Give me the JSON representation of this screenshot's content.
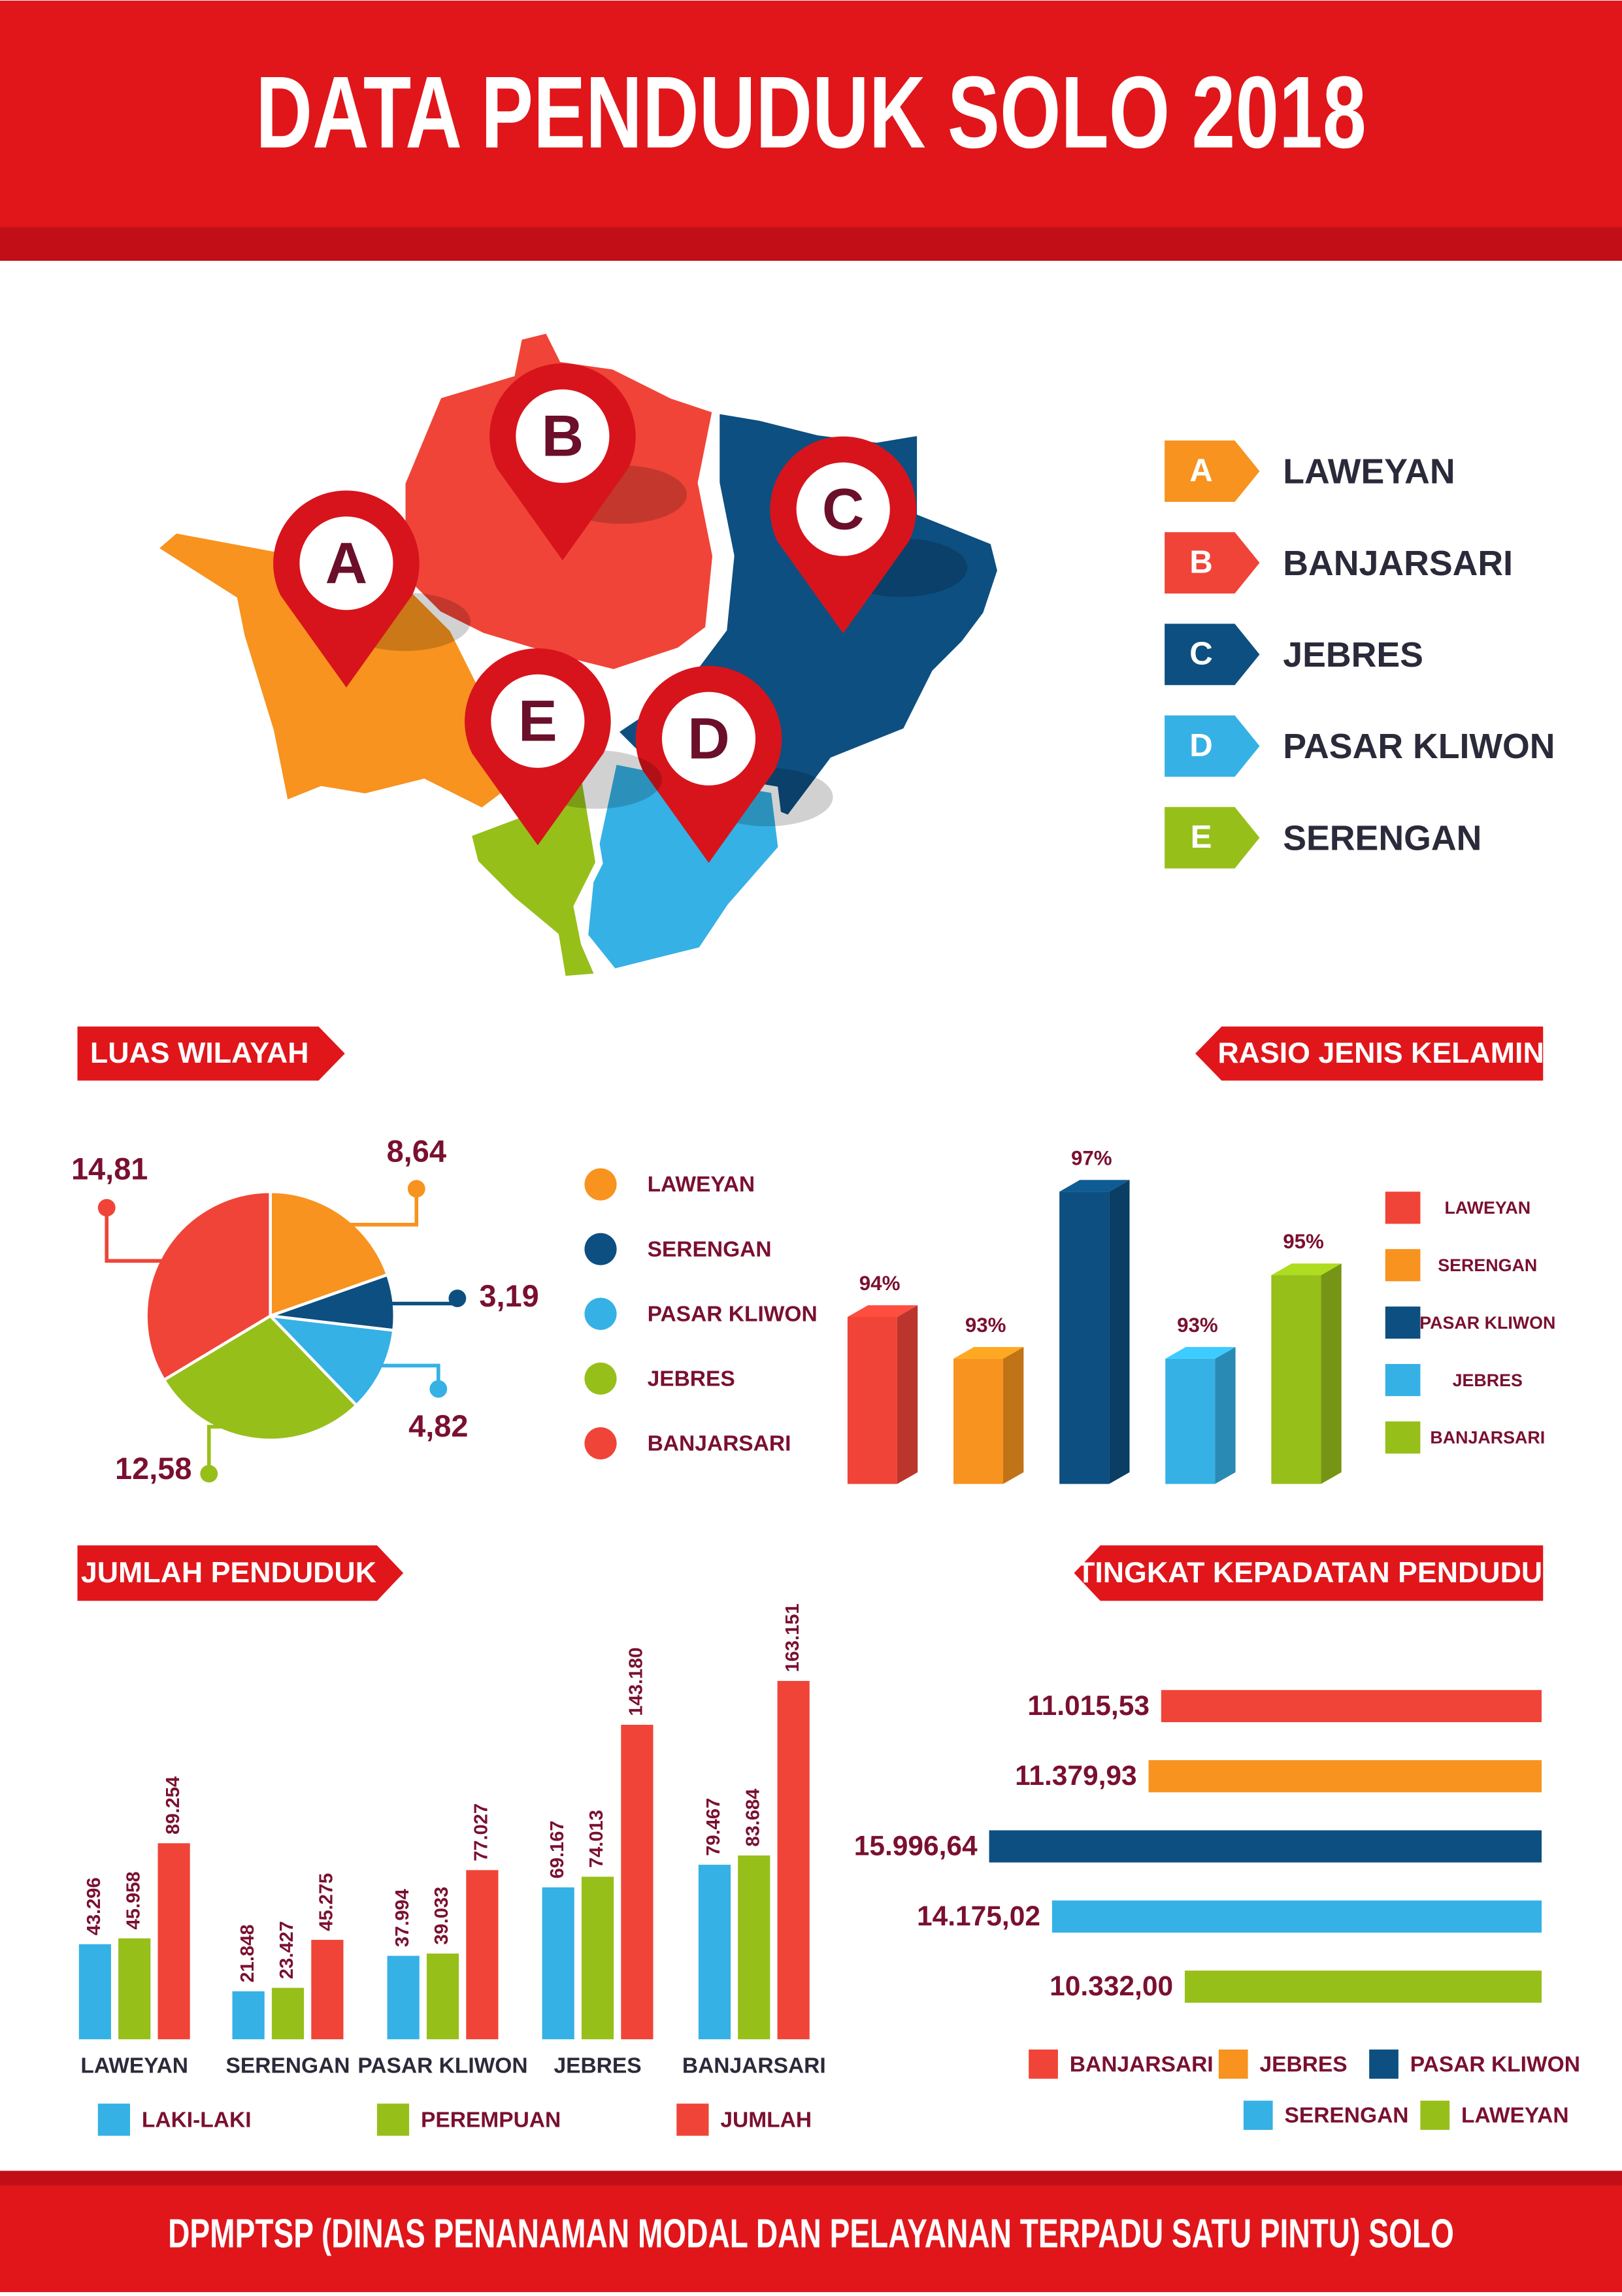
{
  "title": "DATA PENDUDUK SOLO 2018",
  "map": {
    "legend": [
      {
        "key": "A",
        "label": "LAWEYAN",
        "color": "#f7931e"
      },
      {
        "key": "B",
        "label": "BANJARSARI",
        "color": "#f04438"
      },
      {
        "key": "C",
        "label": "JEBRES",
        "color": "#0d4f80"
      },
      {
        "key": "D",
        "label": "PASAR KLIWON",
        "color": "#35b1e5"
      },
      {
        "key": "E",
        "label": "SERENGAN",
        "color": "#97bf1a"
      }
    ]
  },
  "chart_data": [
    {
      "type": "pie",
      "title": "LUAS WILAYAH",
      "categories": [
        "LAWEYAN",
        "SERENGAN",
        "PASAR KLIWON",
        "JEBRES",
        "BANJARSARI"
      ],
      "values": [
        8.64,
        3.19,
        4.82,
        12.58,
        14.81
      ],
      "value_labels": [
        "8,64",
        "3,19",
        "4,82",
        "12,58",
        "14,81"
      ],
      "colors": [
        "#f7931e",
        "#0d4f80",
        "#35b1e5",
        "#97bf1a",
        "#f04438"
      ]
    },
    {
      "type": "bar3d",
      "title": "RASIO JENIS KELAMIN",
      "categories": [
        "LAWEYAN",
        "SERENGAN",
        "PASAR KLIWON",
        "JEBRES",
        "BANJARSARI"
      ],
      "values": [
        94,
        93,
        97,
        93,
        95
      ],
      "value_labels": [
        "94%",
        "93%",
        "97%",
        "93%",
        "95%"
      ],
      "colors": [
        "#f04438",
        "#f7931e",
        "#0d4f80",
        "#35b1e5",
        "#97bf1a"
      ],
      "ylim": [
        90,
        97
      ]
    },
    {
      "type": "grouped_bar",
      "title": "JUMLAH PENDUDUK",
      "categories": [
        "LAWEYAN",
        "SERENGAN",
        "PASAR KLIWON",
        "JEBRES",
        "BANJARSARI"
      ],
      "series": [
        {
          "name": "LAKI-LAKI",
          "color": "#35b1e5",
          "values": [
            43296,
            21848,
            37994,
            69167,
            79467
          ],
          "value_labels": [
            "43.296",
            "21.848",
            "37.994",
            "69.167",
            "79.467"
          ]
        },
        {
          "name": "PEREMPUAN",
          "color": "#97bf1a",
          "values": [
            45958,
            23427,
            39033,
            74013,
            83684
          ],
          "value_labels": [
            "45.958",
            "23.427",
            "39.033",
            "74.013",
            "83.684"
          ]
        },
        {
          "name": "JUMLAH",
          "color": "#f04438",
          "values": [
            89254,
            45275,
            77027,
            143180,
            163151
          ],
          "value_labels": [
            "89.254",
            "45.275",
            "77.027",
            "143.180",
            "163.151"
          ]
        }
      ],
      "ylim": [
        0,
        165000
      ]
    },
    {
      "type": "hbar",
      "title": "TINGKAT KEPADATAN PENDUDUK",
      "categories": [
        "BANJARSARI",
        "JEBRES",
        "PASAR KLIWON",
        "SERENGAN",
        "LAWEYAN"
      ],
      "values": [
        11015.53,
        11379.93,
        15996.64,
        14175.02,
        10332.0
      ],
      "value_labels": [
        "11.015,53",
        "11.379,93",
        "15.996,64",
        "14.175,02",
        "10.332,00"
      ],
      "colors": [
        "#f04438",
        "#f7931e",
        "#0d4f80",
        "#35b1e5",
        "#97bf1a"
      ],
      "xlim": [
        0,
        16500
      ]
    }
  ],
  "footer": "DPMPTSP (DINAS PENANAMAN MODAL DAN PELAYANAN TERPADU SATU PINTU) SOLO"
}
